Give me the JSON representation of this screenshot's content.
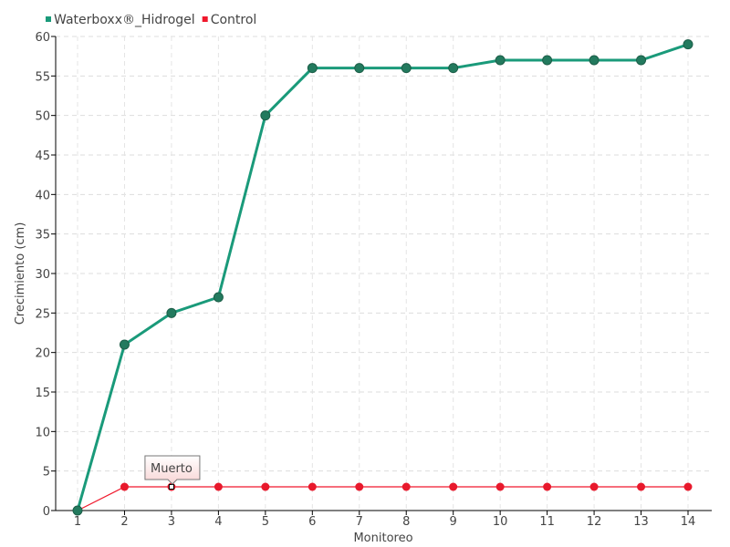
{
  "chart_data": {
    "type": "line",
    "title": "",
    "xlabel": "Monitoreo",
    "ylabel": "Crecimiento (cm)",
    "categories": [
      "1",
      "2",
      "3",
      "4",
      "5",
      "6",
      "7",
      "8",
      "9",
      "10",
      "11",
      "12",
      "13",
      "14"
    ],
    "ylim": [
      0,
      60
    ],
    "yticks": [
      0,
      5,
      10,
      15,
      20,
      25,
      30,
      35,
      40,
      45,
      50,
      55,
      60
    ],
    "grid": true,
    "legend_position": "top-left",
    "series": [
      {
        "name": "Waterboxx®_Hidrogel",
        "color": "#1a9a7a",
        "marker_color": "#237a5e",
        "values": [
          0,
          21,
          25,
          27,
          50,
          56,
          56,
          56,
          56,
          57,
          57,
          57,
          57,
          59
        ]
      },
      {
        "name": "Control",
        "color": "#f0182c",
        "marker_color": "#e8192c",
        "values": [
          0,
          3,
          3,
          3,
          3,
          3,
          3,
          3,
          3,
          3,
          3,
          3,
          3,
          3
        ]
      }
    ],
    "annotations": [
      {
        "series": "Control",
        "category": "3",
        "text": "Muerto"
      }
    ]
  }
}
